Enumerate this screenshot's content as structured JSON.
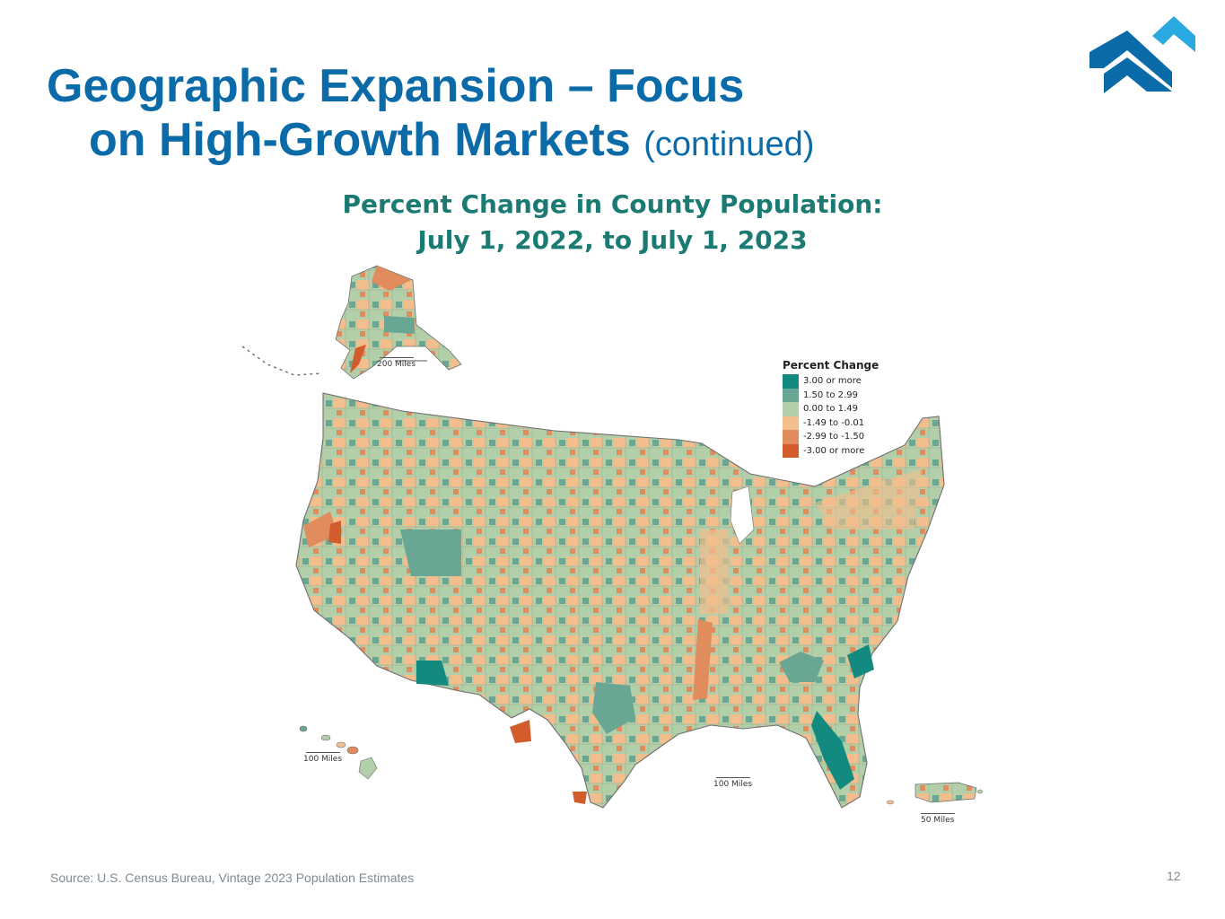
{
  "slide": {
    "title_line1": "Geographic Expansion – Focus",
    "title_line2": "on High-Growth Markets",
    "title_suffix": "(continued)",
    "source": "Source: U.S. Census Bureau, Vintage 2023 Population Estimates",
    "page_number": "12",
    "logo_icon": "company-logo-chevrons"
  },
  "map": {
    "title_line1": "Percent Change in County Population:",
    "title_line2": "July 1, 2022, to July 1, 2023",
    "legend_title": "Percent Change",
    "legend": [
      {
        "label": "3.00 or more",
        "color": "#138a80"
      },
      {
        "label": "1.50 to 2.99",
        "color": "#69a794"
      },
      {
        "label": "0.00 to 1.49",
        "color": "#b3cfa9"
      },
      {
        "label": "-1.49 to -0.01",
        "color": "#f2be8e"
      },
      {
        "label": "-2.99 to -1.50",
        "color": "#e08c5c"
      },
      {
        "label": "-3.00 or more",
        "color": "#d25c2b"
      }
    ],
    "scale_alaska": "200 Miles",
    "scale_hawaii": "100 Miles",
    "scale_mainland": "100 Miles",
    "scale_puerto_rico": "50 Miles",
    "regions": [
      "Alaska",
      "Hawaii",
      "Contiguous United States",
      "Puerto Rico"
    ],
    "colors": {
      "outline": "#6f6f6f",
      "title": "#1b7b73"
    }
  }
}
